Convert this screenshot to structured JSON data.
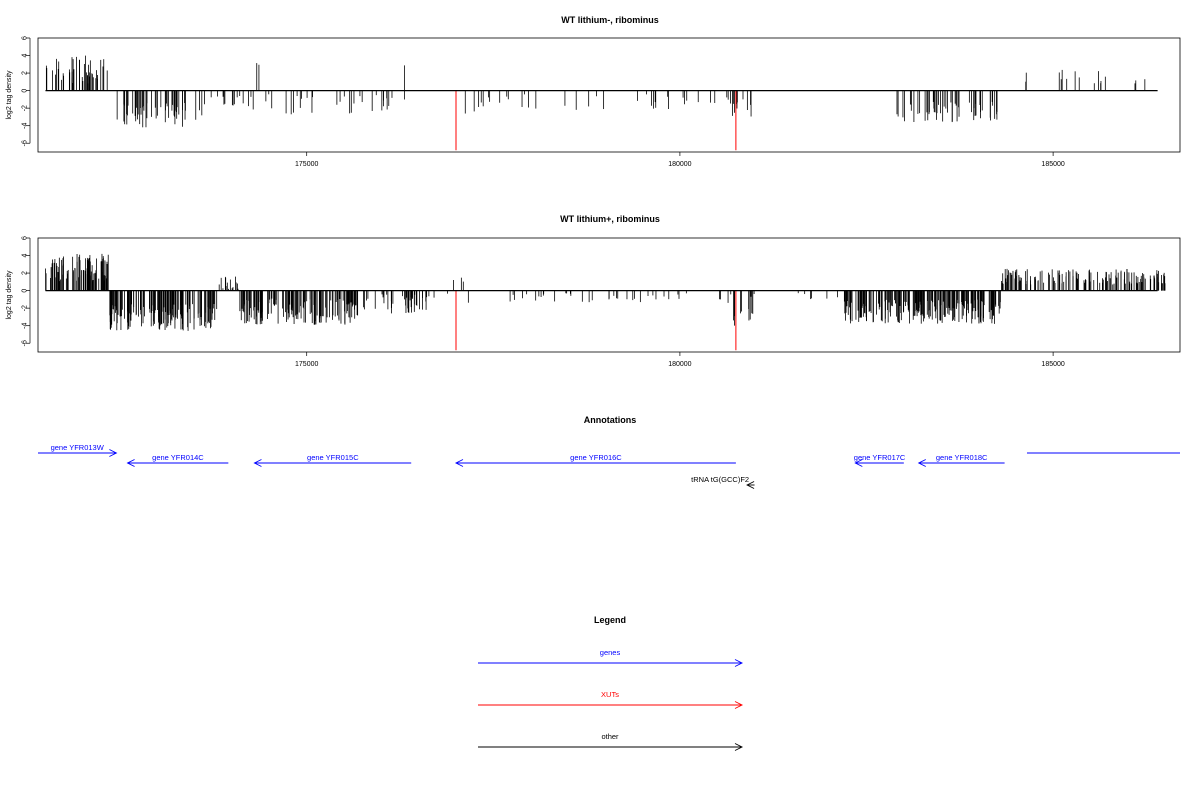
{
  "chart_data": [
    {
      "type": "bar",
      "title": "WT lithium-, ribominus",
      "ylabel": "log2 tag density",
      "xlabel": "",
      "xlim": [
        171400,
        186700
      ],
      "ylim": [
        -7,
        6
      ],
      "x_ticks": [
        175000,
        180000,
        185000
      ],
      "y_ticks": [
        6,
        4,
        2,
        0,
        -2,
        -4,
        -6
      ],
      "highlight_positions": [
        177000,
        180750
      ],
      "highlight_values": [
        -6.8,
        -6.8
      ],
      "highlight_color": "#ff0000",
      "bar_color": "#000000",
      "grid": false,
      "segments": [
        {
          "start": 171500,
          "end": 172350,
          "mean": 2.4,
          "spread": 1.6,
          "n": 45
        },
        {
          "start": 172450,
          "end": 173600,
          "mean": -2.8,
          "spread": 1.4,
          "n": 55
        },
        {
          "start": 173600,
          "end": 174300,
          "mean": -1.4,
          "spread": 0.8,
          "n": 15
        },
        {
          "start": 174300,
          "end": 174400,
          "mean": 2.8,
          "spread": 0.6,
          "n": 2
        },
        {
          "start": 174400,
          "end": 176500,
          "mean": -1.6,
          "spread": 1.2,
          "n": 30
        },
        {
          "start": 176300,
          "end": 176350,
          "mean": 3.0,
          "spread": 0.2,
          "n": 1
        },
        {
          "start": 177100,
          "end": 177600,
          "mean": -1.8,
          "spread": 1.2,
          "n": 8
        },
        {
          "start": 177600,
          "end": 180700,
          "mean": -1.3,
          "spread": 0.9,
          "n": 28
        },
        {
          "start": 180700,
          "end": 181000,
          "mean": -2.0,
          "spread": 1.2,
          "n": 10
        },
        {
          "start": 182900,
          "end": 184300,
          "mean": -2.4,
          "spread": 1.2,
          "n": 55
        },
        {
          "start": 184500,
          "end": 186400,
          "mean": 1.6,
          "spread": 0.8,
          "n": 16
        }
      ]
    },
    {
      "type": "bar",
      "title": "WT lithium+, ribominus",
      "ylabel": "log2 tag density",
      "xlabel": "",
      "xlim": [
        171400,
        186700
      ],
      "ylim": [
        -7,
        6
      ],
      "x_ticks": [
        175000,
        180000,
        185000
      ],
      "y_ticks": [
        6,
        4,
        2,
        0,
        -2,
        -4,
        -6
      ],
      "highlight_positions": [
        177000,
        180750
      ],
      "highlight_values": [
        -6.8,
        -6.8
      ],
      "highlight_color": "#ff0000",
      "bar_color": "#000000",
      "grid": false,
      "segments": [
        {
          "start": 171500,
          "end": 172350,
          "mean": 2.6,
          "spread": 1.6,
          "n": 90
        },
        {
          "start": 172350,
          "end": 173800,
          "mean": -3.0,
          "spread": 1.6,
          "n": 150
        },
        {
          "start": 173800,
          "end": 174100,
          "mean": 0.6,
          "spread": 1.2,
          "n": 15
        },
        {
          "start": 174100,
          "end": 175700,
          "mean": -2.4,
          "spread": 1.5,
          "n": 150
        },
        {
          "start": 175700,
          "end": 176600,
          "mean": -1.4,
          "spread": 1.2,
          "n": 40
        },
        {
          "start": 176600,
          "end": 177000,
          "mean": -0.6,
          "spread": 0.4,
          "n": 4
        },
        {
          "start": 176950,
          "end": 177100,
          "mean": 1.2,
          "spread": 0.5,
          "n": 3
        },
        {
          "start": 177150,
          "end": 180700,
          "mean": -0.8,
          "spread": 0.6,
          "n": 40
        },
        {
          "start": 180700,
          "end": 181000,
          "mean": -1.8,
          "spread": 2.2,
          "n": 12
        },
        {
          "start": 181500,
          "end": 182200,
          "mean": -0.6,
          "spread": 0.4,
          "n": 6
        },
        {
          "start": 182200,
          "end": 184300,
          "mean": -2.4,
          "spread": 1.4,
          "n": 220
        },
        {
          "start": 184300,
          "end": 186500,
          "mean": 1.6,
          "spread": 0.9,
          "n": 150
        }
      ]
    }
  ],
  "annotations": {
    "title": "Annotations",
    "items": [
      {
        "label": "gene YFR013W",
        "start": 171400,
        "end": 172450,
        "direction": "right",
        "row": 0,
        "type": "gene"
      },
      {
        "label": "gene YFR014C",
        "start": 172600,
        "end": 173950,
        "direction": "left",
        "row": 1,
        "type": "gene"
      },
      {
        "label": "gene YFR015C",
        "start": 174300,
        "end": 176400,
        "direction": "left",
        "row": 1,
        "type": "gene"
      },
      {
        "label": "gene YFR016C",
        "start": 177000,
        "end": 180750,
        "direction": "left",
        "row": 1,
        "type": "gene"
      },
      {
        "label": "tRNA tG(GCC)F2",
        "start": 180900,
        "end": 181000,
        "direction": "left",
        "row": 2,
        "type": "other"
      },
      {
        "label": "gene YFR017C",
        "start": 182350,
        "end": 183000,
        "direction": "left",
        "row": 1,
        "type": "gene"
      },
      {
        "label": "gene YFR018C",
        "start": 183200,
        "end": 184350,
        "direction": "left",
        "row": 1,
        "type": "gene"
      },
      {
        "label": "",
        "start": 184650,
        "end": 186700,
        "direction": "right",
        "row": 0,
        "type": "gene"
      }
    ]
  },
  "legend": {
    "title": "Legend",
    "entries": [
      {
        "label": "genes",
        "color": "#0000ff"
      },
      {
        "label": "XUTs",
        "color": "#ff0000"
      },
      {
        "label": "other",
        "color": "#000000"
      }
    ]
  },
  "colors": {
    "gene": "#0000ff",
    "xut": "#ff0000",
    "other": "#000000"
  }
}
